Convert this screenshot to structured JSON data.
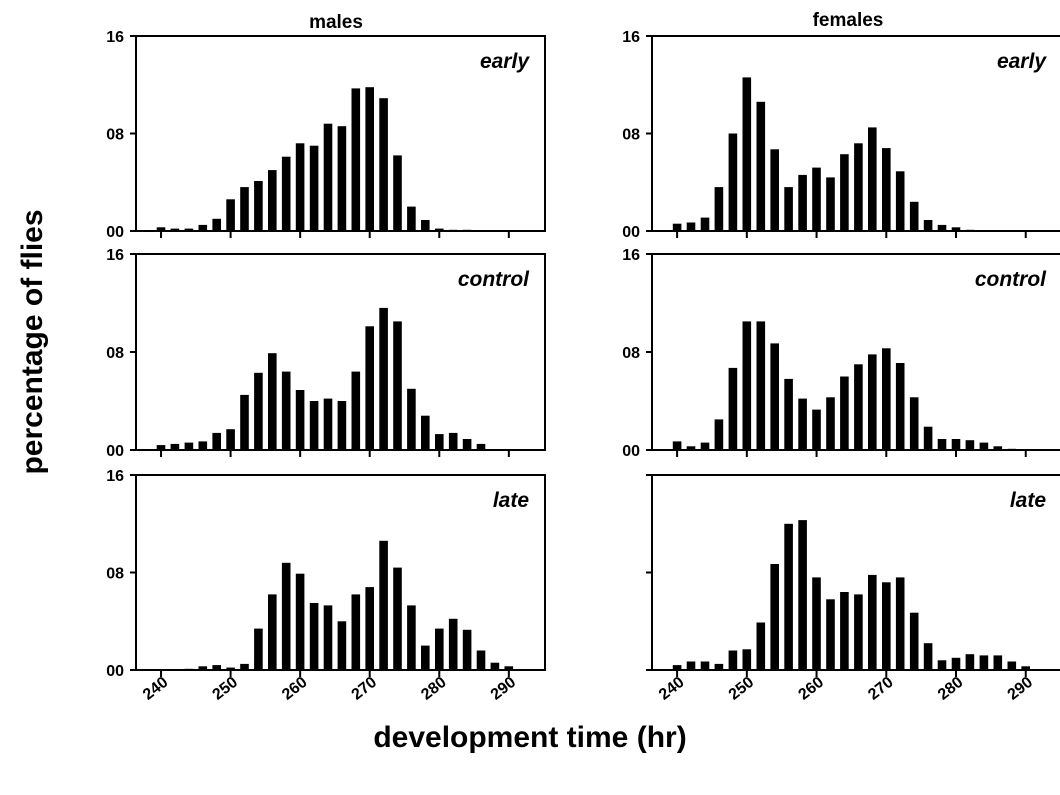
{
  "figure": {
    "ylabel": "percentage of flies",
    "xlabel": "development time (hr)",
    "columns": [
      "males",
      "females"
    ]
  },
  "chart_data": [
    {
      "type": "bar",
      "sex": "males",
      "treatment": "early",
      "x": [
        240,
        242,
        244,
        246,
        248,
        250,
        252,
        254,
        256,
        258,
        260,
        262,
        264,
        266,
        268,
        270,
        272,
        274,
        276,
        278,
        280,
        282,
        284,
        286,
        288,
        290
      ],
      "values": [
        0.3,
        0.2,
        0.2,
        0.5,
        1.0,
        2.6,
        3.6,
        4.1,
        5.0,
        6.1,
        7.2,
        7.0,
        8.8,
        8.6,
        11.7,
        11.8,
        10.9,
        6.2,
        2.0,
        0.9,
        0.2,
        0.1,
        0.1,
        0,
        0,
        0
      ],
      "ylim": [
        0,
        16
      ],
      "yticks": [
        "00",
        "08",
        "16"
      ],
      "xticks": [
        240,
        250,
        260,
        270,
        280,
        290
      ]
    },
    {
      "type": "bar",
      "sex": "males",
      "treatment": "control",
      "x": [
        240,
        242,
        244,
        246,
        248,
        250,
        252,
        254,
        256,
        258,
        260,
        262,
        264,
        266,
        268,
        270,
        272,
        274,
        276,
        278,
        280,
        282,
        284,
        286,
        288,
        290
      ],
      "values": [
        0.4,
        0.5,
        0.6,
        0.7,
        1.4,
        1.7,
        4.5,
        6.3,
        7.9,
        6.4,
        4.9,
        4.0,
        4.2,
        4.0,
        6.4,
        10.1,
        11.6,
        10.5,
        5.0,
        2.8,
        1.3,
        1.4,
        0.9,
        0.5,
        0,
        0
      ],
      "ylim": [
        0,
        16
      ],
      "yticks": [
        "00",
        "08",
        "16"
      ],
      "xticks": [
        240,
        250,
        260,
        270,
        280,
        290
      ]
    },
    {
      "type": "bar",
      "sex": "males",
      "treatment": "late",
      "x": [
        240,
        242,
        244,
        246,
        248,
        250,
        252,
        254,
        256,
        258,
        260,
        262,
        264,
        266,
        268,
        270,
        272,
        274,
        276,
        278,
        280,
        282,
        284,
        286,
        288,
        290
      ],
      "values": [
        0,
        0,
        0.1,
        0.3,
        0.4,
        0.2,
        0.5,
        3.4,
        6.2,
        8.8,
        7.9,
        5.5,
        5.3,
        4.0,
        6.2,
        6.8,
        10.6,
        8.4,
        5.3,
        2.0,
        3.4,
        4.2,
        3.3,
        1.6,
        0.6,
        0.3
      ],
      "ylim": [
        0,
        16
      ],
      "yticks": [
        "00",
        "08",
        "16"
      ],
      "xticks": [
        240,
        250,
        260,
        270,
        280,
        290
      ]
    },
    {
      "type": "bar",
      "sex": "females",
      "treatment": "early",
      "x": [
        240,
        242,
        244,
        246,
        248,
        250,
        252,
        254,
        256,
        258,
        260,
        262,
        264,
        266,
        268,
        270,
        272,
        274,
        276,
        278,
        280,
        282,
        284,
        286,
        288,
        290
      ],
      "values": [
        0.6,
        0.7,
        1.1,
        3.6,
        8.0,
        12.6,
        10.6,
        6.7,
        3.6,
        4.6,
        5.2,
        4.4,
        6.3,
        7.2,
        8.5,
        6.8,
        4.9,
        2.4,
        0.9,
        0.5,
        0.3,
        0.1,
        0,
        0,
        0,
        0
      ],
      "ylim": [
        0,
        16
      ],
      "yticks": [
        "00",
        "08",
        "16"
      ],
      "xticks": [
        240,
        250,
        260,
        270,
        280,
        290
      ]
    },
    {
      "type": "bar",
      "sex": "females",
      "treatment": "control",
      "x": [
        240,
        242,
        244,
        246,
        248,
        250,
        252,
        254,
        256,
        258,
        260,
        262,
        264,
        266,
        268,
        270,
        272,
        274,
        276,
        278,
        280,
        282,
        284,
        286,
        288,
        290
      ],
      "values": [
        0.7,
        0.3,
        0.6,
        2.5,
        6.7,
        10.5,
        10.5,
        8.7,
        5.8,
        4.2,
        3.3,
        4.3,
        6.0,
        7.0,
        7.8,
        8.3,
        7.1,
        4.3,
        1.9,
        0.9,
        0.9,
        0.8,
        0.6,
        0.3,
        0.1,
        0
      ],
      "ylim": [
        0,
        16
      ],
      "yticks": [
        "00",
        "08",
        "16"
      ],
      "xticks": [
        240,
        250,
        260,
        270,
        280,
        290
      ]
    },
    {
      "type": "bar",
      "sex": "females",
      "treatment": "late",
      "x": [
        240,
        242,
        244,
        246,
        248,
        250,
        252,
        254,
        256,
        258,
        260,
        262,
        264,
        266,
        268,
        270,
        272,
        274,
        276,
        278,
        280,
        282,
        284,
        286,
        288,
        290
      ],
      "values": [
        0.4,
        0.7,
        0.7,
        0.5,
        1.6,
        1.7,
        3.9,
        8.7,
        12.0,
        12.3,
        7.6,
        5.8,
        6.4,
        6.2,
        7.8,
        7.2,
        7.6,
        4.7,
        2.2,
        0.8,
        1.0,
        1.3,
        1.2,
        1.2,
        0.7,
        0.3
      ],
      "ylim": [
        0,
        16
      ],
      "yticks": [
        "",
        "",
        ""
      ],
      "xticks": [
        240,
        250,
        260,
        270,
        280,
        290
      ]
    }
  ]
}
